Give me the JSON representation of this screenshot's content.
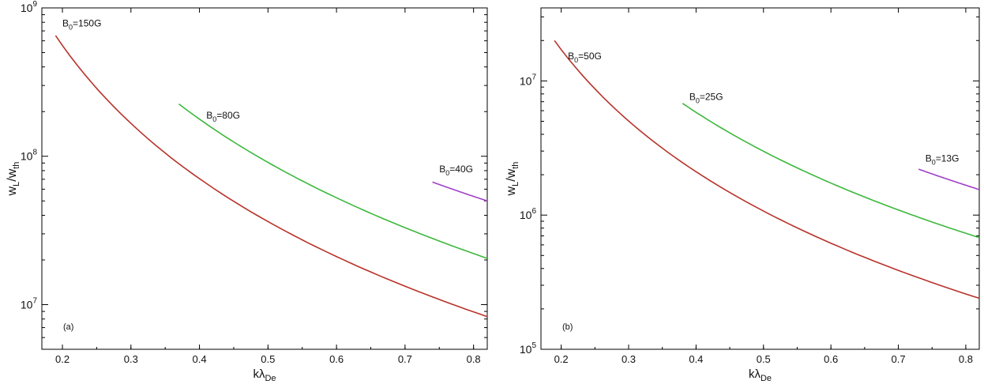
{
  "chart_data": [
    {
      "type": "line",
      "panel_label": "(a)",
      "xlabel": "kλ",
      "xlabel_sub": "De",
      "ylabel": "w",
      "ylabel_sub1": "L",
      "ylabel_mid": "/w",
      "ylabel_sub2": "th",
      "yscale": "log",
      "xlim": [
        0.17,
        0.82
      ],
      "ylim": [
        5000000,
        1000000000
      ],
      "x_ticks": [
        "0.2",
        "0.3",
        "0.4",
        "0.5",
        "0.6",
        "0.7",
        "0.8"
      ],
      "y_ticks": [
        {
          "base": "10",
          "exp": "7",
          "value": 10000000
        },
        {
          "base": "10",
          "exp": "8",
          "value": 100000000
        },
        {
          "base": "10",
          "exp": "9",
          "value": 1000000000
        }
      ],
      "grid": false,
      "series": [
        {
          "label_main": "B",
          "label_sub": "0",
          "label_rest": "=150G",
          "color": "#b8322a",
          "x": [
            0.19,
            0.82
          ],
          "y": [
            650000000,
            8300000
          ],
          "label_at": [
            0.2,
            750000000
          ]
        },
        {
          "label_main": "B",
          "label_sub": "0",
          "label_rest": "=80G",
          "color": "#3cb83c",
          "x": [
            0.37,
            0.82
          ],
          "y": [
            225000000,
            20500000
          ],
          "label_at": [
            0.41,
            180000000
          ]
        },
        {
          "label_main": "B",
          "label_sub": "0",
          "label_rest": "=40G",
          "color": "#a040c8",
          "x": [
            0.74,
            0.82
          ],
          "y": [
            67000000,
            50000000
          ],
          "label_at": [
            0.75,
            78000000
          ]
        }
      ]
    },
    {
      "type": "line",
      "panel_label": "(b)",
      "xlabel": "kλ",
      "xlabel_sub": "De",
      "ylabel": "w",
      "ylabel_sub1": "L",
      "ylabel_mid": "/w",
      "ylabel_sub2": "th",
      "yscale": "log",
      "xlim": [
        0.17,
        0.82
      ],
      "ylim": [
        100000,
        35000000
      ],
      "x_ticks": [
        "0.2",
        "0.3",
        "0.4",
        "0.5",
        "0.6",
        "0.7",
        "0.8"
      ],
      "y_ticks": [
        {
          "base": "10",
          "exp": "5",
          "value": 100000
        },
        {
          "base": "10",
          "exp": "6",
          "value": 1000000
        },
        {
          "base": "10",
          "exp": "7",
          "value": 10000000
        }
      ],
      "grid": false,
      "series": [
        {
          "label_main": "B",
          "label_sub": "0",
          "label_rest": "=50G",
          "color": "#b8322a",
          "x": [
            0.19,
            0.82
          ],
          "y": [
            20000000,
            240000
          ],
          "label_at": [
            0.21,
            14500000
          ]
        },
        {
          "label_main": "B",
          "label_sub": "0",
          "label_rest": "=25G",
          "color": "#3cb83c",
          "x": [
            0.38,
            0.82
          ],
          "y": [
            6800000,
            680000
          ],
          "label_at": [
            0.39,
            7200000
          ]
        },
        {
          "label_main": "B",
          "label_sub": "0",
          "label_rest": "=13G",
          "color": "#a040c8",
          "x": [
            0.73,
            0.82
          ],
          "y": [
            2200000,
            1550000
          ],
          "label_at": [
            0.74,
            2500000
          ]
        }
      ]
    }
  ]
}
